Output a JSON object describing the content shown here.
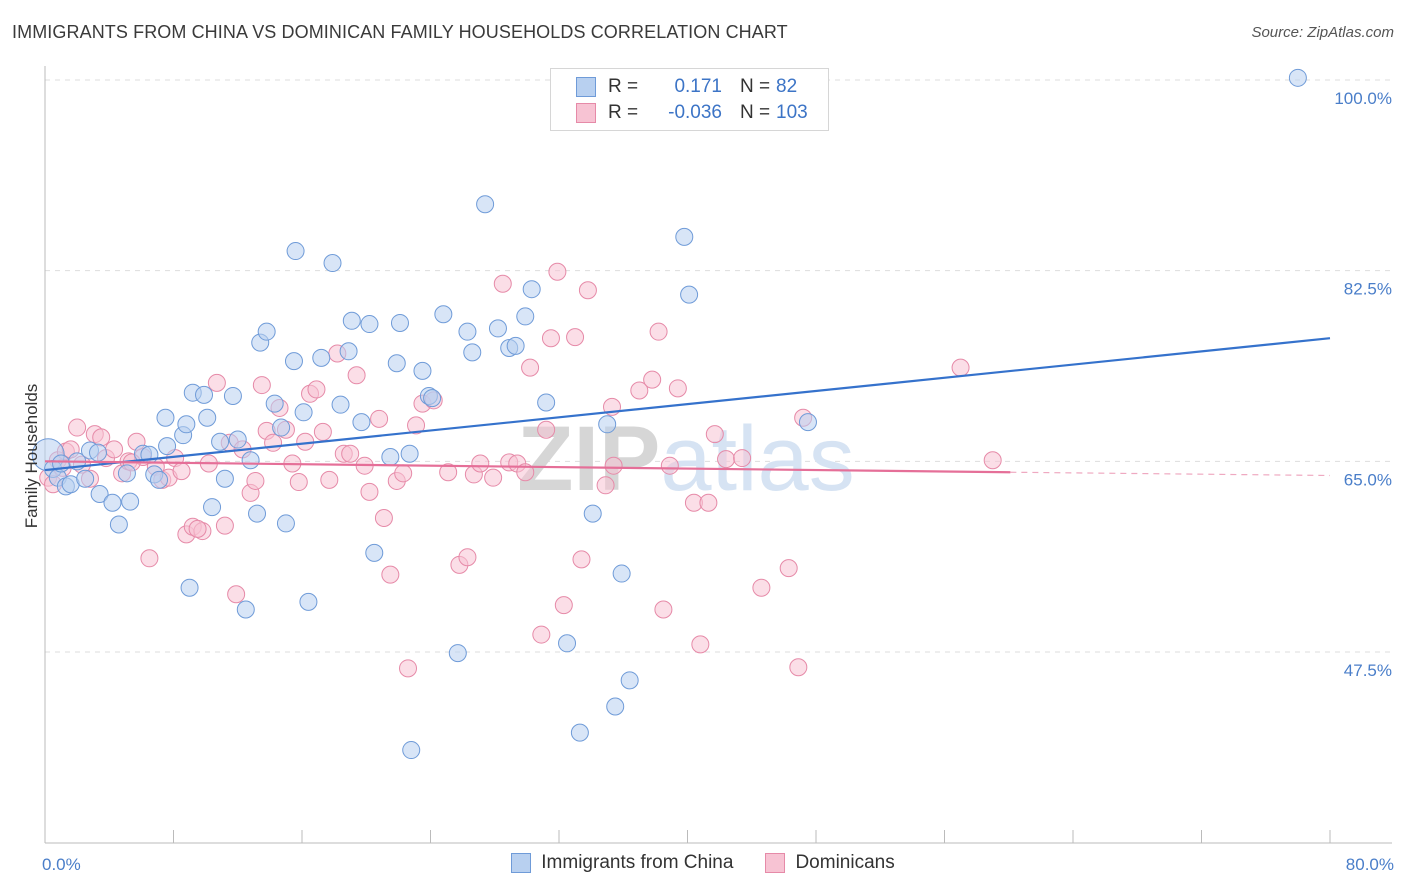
{
  "title": "IMMIGRANTS FROM CHINA VS DOMINICAN FAMILY HOUSEHOLDS CORRELATION CHART",
  "source": "Source: ZipAtlas.com",
  "legend": {
    "china": {
      "r_label": "R =",
      "r_value": "0.171",
      "n_label": "N =",
      "n_value": "82"
    },
    "dominican": {
      "r_label": "R =",
      "r_value": "-0.036",
      "n_label": "N =",
      "n_value": "103"
    }
  },
  "colors": {
    "china_fill": "#b8d0f0",
    "china_stroke": "#6f9bd8",
    "china_line": "#3572cc",
    "dominican_fill": "#f7c3d3",
    "dominican_stroke": "#e68aa8",
    "dominican_line": "#e56f98",
    "tick_label": "#4a7ec9",
    "grid": "#dddddd"
  },
  "chart_data": {
    "type": "scatter",
    "title": "IMMIGRANTS FROM CHINA VS DOMINICAN FAMILY HOUSEHOLDS CORRELATION CHART",
    "xlabel": "",
    "ylabel": "Family Households",
    "xlim": [
      0,
      80
    ],
    "ylim": [
      32,
      103
    ],
    "x_tick_labels": [
      "0.0%",
      "80.0%"
    ],
    "y_ticks": [
      47.5,
      65.0,
      82.5,
      100.0
    ],
    "y_tick_labels": [
      "47.5%",
      "65.0%",
      "82.5%",
      "100.0%"
    ],
    "grid": "horizontal dashed",
    "legend_position": "top-center",
    "watermark": "ZIPatlas",
    "series": [
      {
        "name": "Immigrants from China",
        "trend": {
          "x": [
            0,
            80
          ],
          "y": [
            64.2,
            76.3
          ]
        },
        "points": [
          [
            0.2,
            65.6
          ],
          [
            0.5,
            64.3
          ],
          [
            0.8,
            63.5
          ],
          [
            1.0,
            64.8
          ],
          [
            1.3,
            62.7
          ],
          [
            1.6,
            62.9
          ],
          [
            2.0,
            65.0
          ],
          [
            2.5,
            63.4
          ],
          [
            2.8,
            66.0
          ],
          [
            3.3,
            65.8
          ],
          [
            3.4,
            62.0
          ],
          [
            4.2,
            61.2
          ],
          [
            4.6,
            59.2
          ],
          [
            5.1,
            63.9
          ],
          [
            5.3,
            61.3
          ],
          [
            6.1,
            65.7
          ],
          [
            6.5,
            65.6
          ],
          [
            6.8,
            63.8
          ],
          [
            7.1,
            63.3
          ],
          [
            7.5,
            69.0
          ],
          [
            7.6,
            66.4
          ],
          [
            8.6,
            67.4
          ],
          [
            8.8,
            68.4
          ],
          [
            9.0,
            53.4
          ],
          [
            9.2,
            71.3
          ],
          [
            9.9,
            71.1
          ],
          [
            10.1,
            69.0
          ],
          [
            10.4,
            60.8
          ],
          [
            10.9,
            66.8
          ],
          [
            11.2,
            63.4
          ],
          [
            11.7,
            71.0
          ],
          [
            12.0,
            67.0
          ],
          [
            12.5,
            51.4
          ],
          [
            12.8,
            65.1
          ],
          [
            13.2,
            60.2
          ],
          [
            13.4,
            75.9
          ],
          [
            13.8,
            76.9
          ],
          [
            14.3,
            70.3
          ],
          [
            14.7,
            68.1
          ],
          [
            15.0,
            59.3
          ],
          [
            15.5,
            74.2
          ],
          [
            15.6,
            84.3
          ],
          [
            16.1,
            69.5
          ],
          [
            16.4,
            52.1
          ],
          [
            17.2,
            74.5
          ],
          [
            17.9,
            83.2
          ],
          [
            18.4,
            70.2
          ],
          [
            18.9,
            75.1
          ],
          [
            19.1,
            77.9
          ],
          [
            19.7,
            68.6
          ],
          [
            20.2,
            77.6
          ],
          [
            20.5,
            56.6
          ],
          [
            21.5,
            65.4
          ],
          [
            21.9,
            74.0
          ],
          [
            22.1,
            77.7
          ],
          [
            22.7,
            65.7
          ],
          [
            22.8,
            38.5
          ],
          [
            23.5,
            73.3
          ],
          [
            23.9,
            71.0
          ],
          [
            24.1,
            70.8
          ],
          [
            24.8,
            78.5
          ],
          [
            25.7,
            47.4
          ],
          [
            26.3,
            76.9
          ],
          [
            26.6,
            75.0
          ],
          [
            27.4,
            88.6
          ],
          [
            28.2,
            77.2
          ],
          [
            28.9,
            75.4
          ],
          [
            29.3,
            75.6
          ],
          [
            29.9,
            78.3
          ],
          [
            30.3,
            80.8
          ],
          [
            31.2,
            70.4
          ],
          [
            32.5,
            48.3
          ],
          [
            33.3,
            40.1
          ],
          [
            34.1,
            60.2
          ],
          [
            35.0,
            68.4
          ],
          [
            35.5,
            42.5
          ],
          [
            35.9,
            54.7
          ],
          [
            36.4,
            44.9
          ],
          [
            39.8,
            85.6
          ],
          [
            40.1,
            80.3
          ],
          [
            47.5,
            68.6
          ],
          [
            78.0,
            100.2
          ]
        ]
      },
      {
        "name": "Dominicans",
        "trend": {
          "x": [
            0,
            60.1
          ],
          "y": [
            65.0,
            64.0
          ]
        },
        "trend_dashed": {
          "x": [
            60.1,
            80
          ],
          "y": [
            64.0,
            63.7
          ]
        },
        "points": [
          [
            0.2,
            63.5
          ],
          [
            0.5,
            62.9
          ],
          [
            0.8,
            65.1
          ],
          [
            1.1,
            64.4
          ],
          [
            1.3,
            65.9
          ],
          [
            1.6,
            66.1
          ],
          [
            2.0,
            68.1
          ],
          [
            2.3,
            64.7
          ],
          [
            2.8,
            63.4
          ],
          [
            3.1,
            67.5
          ],
          [
            3.5,
            67.2
          ],
          [
            3.8,
            65.3
          ],
          [
            4.3,
            66.1
          ],
          [
            4.8,
            63.9
          ],
          [
            5.2,
            65.0
          ],
          [
            5.7,
            66.8
          ],
          [
            6.1,
            65.4
          ],
          [
            6.5,
            56.1
          ],
          [
            6.9,
            64.5
          ],
          [
            7.3,
            63.3
          ],
          [
            7.7,
            63.5
          ],
          [
            8.1,
            65.3
          ],
          [
            8.5,
            64.1
          ],
          [
            8.8,
            58.3
          ],
          [
            9.2,
            59.0
          ],
          [
            9.8,
            58.6
          ],
          [
            10.2,
            64.8
          ],
          [
            10.7,
            72.2
          ],
          [
            11.2,
            59.1
          ],
          [
            11.5,
            66.7
          ],
          [
            11.9,
            52.8
          ],
          [
            12.3,
            66.1
          ],
          [
            12.8,
            62.1
          ],
          [
            13.1,
            63.2
          ],
          [
            13.5,
            72.0
          ],
          [
            13.8,
            67.8
          ],
          [
            14.2,
            66.7
          ],
          [
            14.6,
            69.9
          ],
          [
            15.0,
            67.9
          ],
          [
            15.4,
            64.8
          ],
          [
            15.8,
            63.1
          ],
          [
            16.2,
            66.8
          ],
          [
            16.5,
            71.2
          ],
          [
            16.9,
            71.6
          ],
          [
            17.3,
            67.7
          ],
          [
            17.7,
            63.3
          ],
          [
            18.2,
            74.9
          ],
          [
            18.6,
            65.7
          ],
          [
            19.0,
            65.7
          ],
          [
            19.4,
            72.9
          ],
          [
            19.9,
            64.6
          ],
          [
            20.2,
            62.2
          ],
          [
            20.8,
            68.9
          ],
          [
            21.1,
            59.8
          ],
          [
            21.5,
            54.6
          ],
          [
            21.9,
            63.2
          ],
          [
            22.3,
            63.9
          ],
          [
            22.6,
            46.0
          ],
          [
            23.1,
            68.3
          ],
          [
            23.5,
            70.3
          ],
          [
            24.2,
            70.6
          ],
          [
            25.1,
            64.0
          ],
          [
            25.8,
            55.5
          ],
          [
            26.3,
            56.2
          ],
          [
            26.7,
            63.8
          ],
          [
            27.1,
            64.8
          ],
          [
            27.9,
            63.5
          ],
          [
            28.5,
            81.3
          ],
          [
            28.9,
            64.9
          ],
          [
            29.4,
            64.8
          ],
          [
            29.9,
            64.0
          ],
          [
            30.2,
            73.6
          ],
          [
            30.9,
            49.1
          ],
          [
            31.2,
            67.9
          ],
          [
            31.5,
            76.3
          ],
          [
            31.9,
            82.4
          ],
          [
            32.3,
            51.8
          ],
          [
            33.0,
            76.4
          ],
          [
            33.4,
            56.0
          ],
          [
            33.8,
            80.7
          ],
          [
            34.9,
            62.8
          ],
          [
            35.3,
            70.0
          ],
          [
            35.4,
            64.6
          ],
          [
            37.0,
            71.5
          ],
          [
            37.8,
            72.5
          ],
          [
            38.2,
            76.9
          ],
          [
            38.5,
            51.4
          ],
          [
            38.9,
            64.6
          ],
          [
            39.4,
            71.7
          ],
          [
            40.4,
            61.2
          ],
          [
            40.8,
            48.2
          ],
          [
            41.3,
            61.2
          ],
          [
            41.7,
            67.5
          ],
          [
            42.4,
            65.2
          ],
          [
            43.4,
            65.3
          ],
          [
            44.6,
            53.4
          ],
          [
            46.3,
            55.2
          ],
          [
            46.9,
            46.1
          ],
          [
            47.2,
            69.0
          ],
          [
            57.0,
            73.6
          ],
          [
            59.0,
            65.1
          ],
          [
            9.5,
            58.8
          ],
          [
            5.4,
            64.9
          ]
        ]
      }
    ]
  }
}
